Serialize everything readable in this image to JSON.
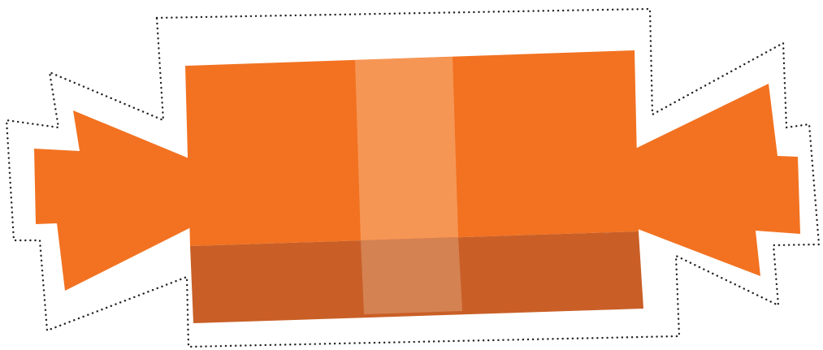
{
  "illustration": {
    "subject": "wrapped-candy",
    "colors": {
      "wrapper_orange": "#f27221",
      "wrapper_shadow": "#c95f27",
      "stripe_light": "#f69655",
      "stripe_shadow": "#d58252",
      "cut_line": "#222222",
      "background": "#ffffff"
    },
    "cut_line_style": "dotted"
  }
}
